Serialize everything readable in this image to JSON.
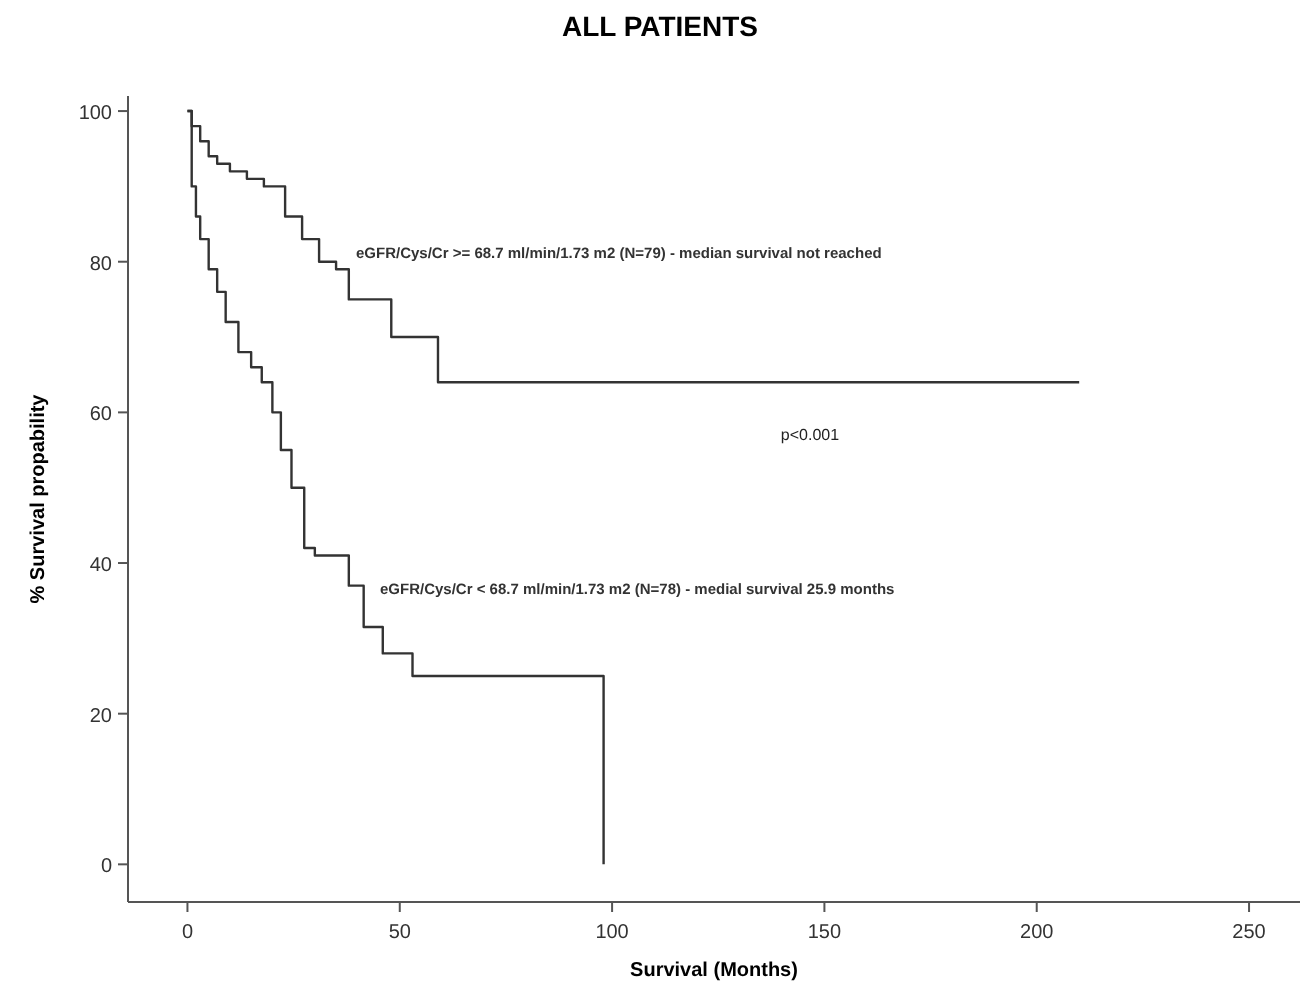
{
  "chart_data": {
    "type": "step",
    "title": "ALL PATIENTS",
    "xlabel": "Survival (Months)",
    "ylabel": "% Survival propability",
    "series": [
      {
        "name": "eGFR/Cys/Cr >= 68.7 ml/min/1.73 m2 (N=79) - median survival not reached",
        "color": "#333333",
        "x": [
          0,
          1,
          3,
          5,
          7,
          10,
          14,
          18,
          23,
          27,
          31,
          35,
          38,
          48,
          59,
          210
        ],
        "values": [
          100,
          98,
          96,
          94,
          93,
          92,
          91,
          90,
          86,
          83,
          80,
          79,
          75,
          70,
          64,
          64
        ]
      },
      {
        "name": "eGFR/Cys/Cr < 68.7 ml/min/1.73 m2 (N=78) - medial survival 25.9 months",
        "color": "#333333",
        "x": [
          0,
          1,
          2,
          3,
          5,
          7,
          9,
          12,
          15,
          17.5,
          20,
          22,
          24.5,
          27.5,
          30,
          38,
          41.5,
          46,
          53,
          98,
          98
        ],
        "values": [
          100,
          90,
          86,
          83,
          79,
          76,
          72,
          68,
          66,
          64,
          60,
          55,
          50,
          42,
          41,
          37,
          31.5,
          28,
          25,
          25,
          0
        ]
      }
    ],
    "annotations": [
      "p<0.001"
    ],
    "xlim": [
      -14,
      262
    ],
    "ylim": [
      -5,
      102
    ],
    "xticks": [
      0,
      50,
      100,
      150,
      200,
      250
    ],
    "yticks": [
      0,
      20,
      40,
      60,
      80,
      100
    ]
  }
}
